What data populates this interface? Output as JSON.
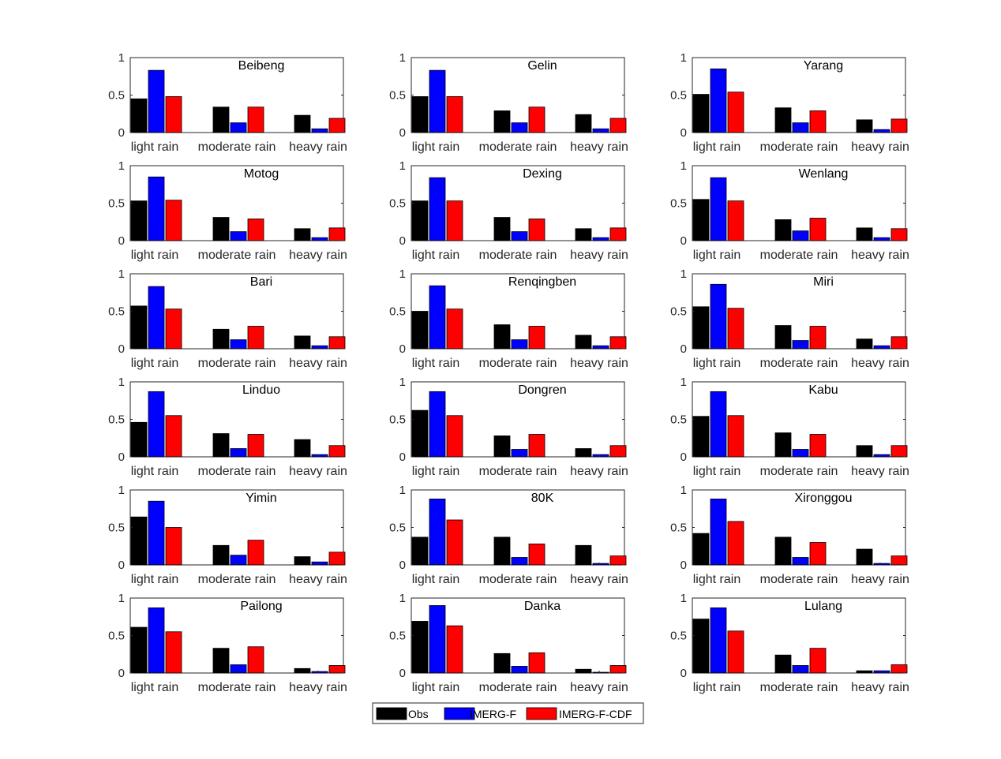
{
  "colors": {
    "Obs": "#000000",
    "IMERG-F": "#0000ff",
    "IMERG-F-CDF": "#ff0000"
  },
  "legend": [
    "Obs",
    "IMERG-F",
    "IMERG-F-CDF"
  ],
  "chart_data": [
    {
      "type": "bar",
      "title": "Beibeng",
      "categories": [
        "light rain",
        "moderate rain",
        "heavy rain"
      ],
      "ylim": [
        0,
        1
      ],
      "yticks": [
        "0",
        "0.5",
        "1"
      ],
      "series": [
        {
          "name": "Obs",
          "values": [
            0.45,
            0.34,
            0.23
          ]
        },
        {
          "name": "IMERG-F",
          "values": [
            0.83,
            0.13,
            0.05
          ]
        },
        {
          "name": "IMERG-F-CDF",
          "values": [
            0.48,
            0.34,
            0.19
          ]
        }
      ]
    },
    {
      "type": "bar",
      "title": "Gelin",
      "categories": [
        "light rain",
        "moderate rain",
        "heavy rain"
      ],
      "ylim": [
        0,
        1
      ],
      "yticks": [
        "0",
        "0.5",
        "1"
      ],
      "series": [
        {
          "name": "Obs",
          "values": [
            0.48,
            0.29,
            0.24
          ]
        },
        {
          "name": "IMERG-F",
          "values": [
            0.83,
            0.13,
            0.05
          ]
        },
        {
          "name": "IMERG-F-CDF",
          "values": [
            0.48,
            0.34,
            0.19
          ]
        }
      ]
    },
    {
      "type": "bar",
      "title": "Yarang",
      "categories": [
        "light rain",
        "moderate rain",
        "heavy rain"
      ],
      "ylim": [
        0,
        1
      ],
      "yticks": [
        "0",
        "0.5",
        "1"
      ],
      "series": [
        {
          "name": "Obs",
          "values": [
            0.51,
            0.33,
            0.17
          ]
        },
        {
          "name": "IMERG-F",
          "values": [
            0.85,
            0.13,
            0.04
          ]
        },
        {
          "name": "IMERG-F-CDF",
          "values": [
            0.54,
            0.29,
            0.18
          ]
        }
      ]
    },
    {
      "type": "bar",
      "title": "Motog",
      "categories": [
        "light rain",
        "moderate rain",
        "heavy rain"
      ],
      "ylim": [
        0,
        1
      ],
      "yticks": [
        "0",
        "0.5",
        "1"
      ],
      "series": [
        {
          "name": "Obs",
          "values": [
            0.53,
            0.31,
            0.16
          ]
        },
        {
          "name": "IMERG-F",
          "values": [
            0.85,
            0.12,
            0.04
          ]
        },
        {
          "name": "IMERG-F-CDF",
          "values": [
            0.54,
            0.29,
            0.17
          ]
        }
      ]
    },
    {
      "type": "bar",
      "title": "Dexing",
      "categories": [
        "light rain",
        "moderate rain",
        "heavy rain"
      ],
      "ylim": [
        0,
        1
      ],
      "yticks": [
        "0",
        "0.5",
        "1"
      ],
      "series": [
        {
          "name": "Obs",
          "values": [
            0.53,
            0.31,
            0.16
          ]
        },
        {
          "name": "IMERG-F",
          "values": [
            0.84,
            0.12,
            0.04
          ]
        },
        {
          "name": "IMERG-F-CDF",
          "values": [
            0.53,
            0.29,
            0.17
          ]
        }
      ]
    },
    {
      "type": "bar",
      "title": "Wenlang",
      "categories": [
        "light rain",
        "moderate rain",
        "heavy rain"
      ],
      "ylim": [
        0,
        1
      ],
      "yticks": [
        "0",
        "0.5",
        "1"
      ],
      "series": [
        {
          "name": "Obs",
          "values": [
            0.55,
            0.28,
            0.17
          ]
        },
        {
          "name": "IMERG-F",
          "values": [
            0.84,
            0.13,
            0.04
          ]
        },
        {
          "name": "IMERG-F-CDF",
          "values": [
            0.53,
            0.3,
            0.16
          ]
        }
      ]
    },
    {
      "type": "bar",
      "title": "Bari",
      "categories": [
        "light rain",
        "moderate rain",
        "heavy rain"
      ],
      "ylim": [
        0,
        1
      ],
      "yticks": [
        "0",
        "0.5",
        "1"
      ],
      "series": [
        {
          "name": "Obs",
          "values": [
            0.57,
            0.26,
            0.17
          ]
        },
        {
          "name": "IMERG-F",
          "values": [
            0.83,
            0.12,
            0.04
          ]
        },
        {
          "name": "IMERG-F-CDF",
          "values": [
            0.53,
            0.3,
            0.16
          ]
        }
      ]
    },
    {
      "type": "bar",
      "title": "Renqingben",
      "categories": [
        "light rain",
        "moderate rain",
        "heavy rain"
      ],
      "ylim": [
        0,
        1
      ],
      "yticks": [
        "0",
        "0.5",
        "1"
      ],
      "series": [
        {
          "name": "Obs",
          "values": [
            0.5,
            0.32,
            0.18
          ]
        },
        {
          "name": "IMERG-F",
          "values": [
            0.84,
            0.12,
            0.04
          ]
        },
        {
          "name": "IMERG-F-CDF",
          "values": [
            0.53,
            0.3,
            0.16
          ]
        }
      ]
    },
    {
      "type": "bar",
      "title": "Miri",
      "categories": [
        "light rain",
        "moderate rain",
        "heavy rain"
      ],
      "ylim": [
        0,
        1
      ],
      "yticks": [
        "0",
        "0.5",
        "1"
      ],
      "series": [
        {
          "name": "Obs",
          "values": [
            0.56,
            0.31,
            0.13
          ]
        },
        {
          "name": "IMERG-F",
          "values": [
            0.86,
            0.11,
            0.04
          ]
        },
        {
          "name": "IMERG-F-CDF",
          "values": [
            0.54,
            0.3,
            0.16
          ]
        }
      ]
    },
    {
      "type": "bar",
      "title": "Linduo",
      "categories": [
        "light rain",
        "moderate rain",
        "heavy rain"
      ],
      "ylim": [
        0,
        1
      ],
      "yticks": [
        "0",
        "0.5",
        "1"
      ],
      "series": [
        {
          "name": "Obs",
          "values": [
            0.46,
            0.31,
            0.23
          ]
        },
        {
          "name": "IMERG-F",
          "values": [
            0.87,
            0.11,
            0.03
          ]
        },
        {
          "name": "IMERG-F-CDF",
          "values": [
            0.55,
            0.3,
            0.15
          ]
        }
      ]
    },
    {
      "type": "bar",
      "title": "Dongren",
      "categories": [
        "light rain",
        "moderate rain",
        "heavy rain"
      ],
      "ylim": [
        0,
        1
      ],
      "yticks": [
        "0",
        "0.5",
        "1"
      ],
      "series": [
        {
          "name": "Obs",
          "values": [
            0.62,
            0.28,
            0.11
          ]
        },
        {
          "name": "IMERG-F",
          "values": [
            0.87,
            0.1,
            0.03
          ]
        },
        {
          "name": "IMERG-F-CDF",
          "values": [
            0.55,
            0.3,
            0.15
          ]
        }
      ]
    },
    {
      "type": "bar",
      "title": "Kabu",
      "categories": [
        "light rain",
        "moderate rain",
        "heavy rain"
      ],
      "ylim": [
        0,
        1
      ],
      "yticks": [
        "0",
        "0.5",
        "1"
      ],
      "series": [
        {
          "name": "Obs",
          "values": [
            0.54,
            0.32,
            0.15
          ]
        },
        {
          "name": "IMERG-F",
          "values": [
            0.87,
            0.1,
            0.03
          ]
        },
        {
          "name": "IMERG-F-CDF",
          "values": [
            0.55,
            0.3,
            0.15
          ]
        }
      ]
    },
    {
      "type": "bar",
      "title": "Yimin",
      "categories": [
        "light rain",
        "moderate rain",
        "heavy rain"
      ],
      "ylim": [
        0,
        1
      ],
      "yticks": [
        "0",
        "0.5",
        "1"
      ],
      "series": [
        {
          "name": "Obs",
          "values": [
            0.64,
            0.26,
            0.11
          ]
        },
        {
          "name": "IMERG-F",
          "values": [
            0.85,
            0.13,
            0.04
          ]
        },
        {
          "name": "IMERG-F-CDF",
          "values": [
            0.5,
            0.33,
            0.17
          ]
        }
      ]
    },
    {
      "type": "bar",
      "title": "80K",
      "categories": [
        "light rain",
        "moderate rain",
        "heavy rain"
      ],
      "ylim": [
        0,
        1
      ],
      "yticks": [
        "0",
        "0.5",
        "1"
      ],
      "series": [
        {
          "name": "Obs",
          "values": [
            0.37,
            0.37,
            0.26
          ]
        },
        {
          "name": "IMERG-F",
          "values": [
            0.88,
            0.1,
            0.02
          ]
        },
        {
          "name": "IMERG-F-CDF",
          "values": [
            0.6,
            0.28,
            0.12
          ]
        }
      ]
    },
    {
      "type": "bar",
      "title": "Xironggou",
      "categories": [
        "light rain",
        "moderate rain",
        "heavy rain"
      ],
      "ylim": [
        0,
        1
      ],
      "yticks": [
        "0",
        "0.5",
        "1"
      ],
      "series": [
        {
          "name": "Obs",
          "values": [
            0.42,
            0.37,
            0.21
          ]
        },
        {
          "name": "IMERG-F",
          "values": [
            0.88,
            0.1,
            0.02
          ]
        },
        {
          "name": "IMERG-F-CDF",
          "values": [
            0.58,
            0.3,
            0.12
          ]
        }
      ]
    },
    {
      "type": "bar",
      "title": "Pailong",
      "categories": [
        "light rain",
        "moderate rain",
        "heavy rain"
      ],
      "ylim": [
        0,
        1
      ],
      "yticks": [
        "0",
        "0.5",
        "1"
      ],
      "series": [
        {
          "name": "Obs",
          "values": [
            0.61,
            0.33,
            0.06
          ]
        },
        {
          "name": "IMERG-F",
          "values": [
            0.87,
            0.11,
            0.02
          ]
        },
        {
          "name": "IMERG-F-CDF",
          "values": [
            0.55,
            0.35,
            0.1
          ]
        }
      ]
    },
    {
      "type": "bar",
      "title": "Danka",
      "categories": [
        "light rain",
        "moderate rain",
        "heavy rain"
      ],
      "ylim": [
        0,
        1
      ],
      "yticks": [
        "0",
        "0.5",
        "1"
      ],
      "series": [
        {
          "name": "Obs",
          "values": [
            0.69,
            0.26,
            0.05
          ]
        },
        {
          "name": "IMERG-F",
          "values": [
            0.9,
            0.09,
            0.01
          ]
        },
        {
          "name": "IMERG-F-CDF",
          "values": [
            0.63,
            0.27,
            0.1
          ]
        }
      ]
    },
    {
      "type": "bar",
      "title": "Lulang",
      "categories": [
        "light rain",
        "moderate rain",
        "heavy rain"
      ],
      "ylim": [
        0,
        1
      ],
      "yticks": [
        "0",
        "0.5",
        "1"
      ],
      "series": [
        {
          "name": "Obs",
          "values": [
            0.72,
            0.24,
            0.03
          ]
        },
        {
          "name": "IMERG-F",
          "values": [
            0.87,
            0.1,
            0.03
          ]
        },
        {
          "name": "IMERG-F-CDF",
          "values": [
            0.56,
            0.33,
            0.11
          ]
        }
      ]
    }
  ]
}
